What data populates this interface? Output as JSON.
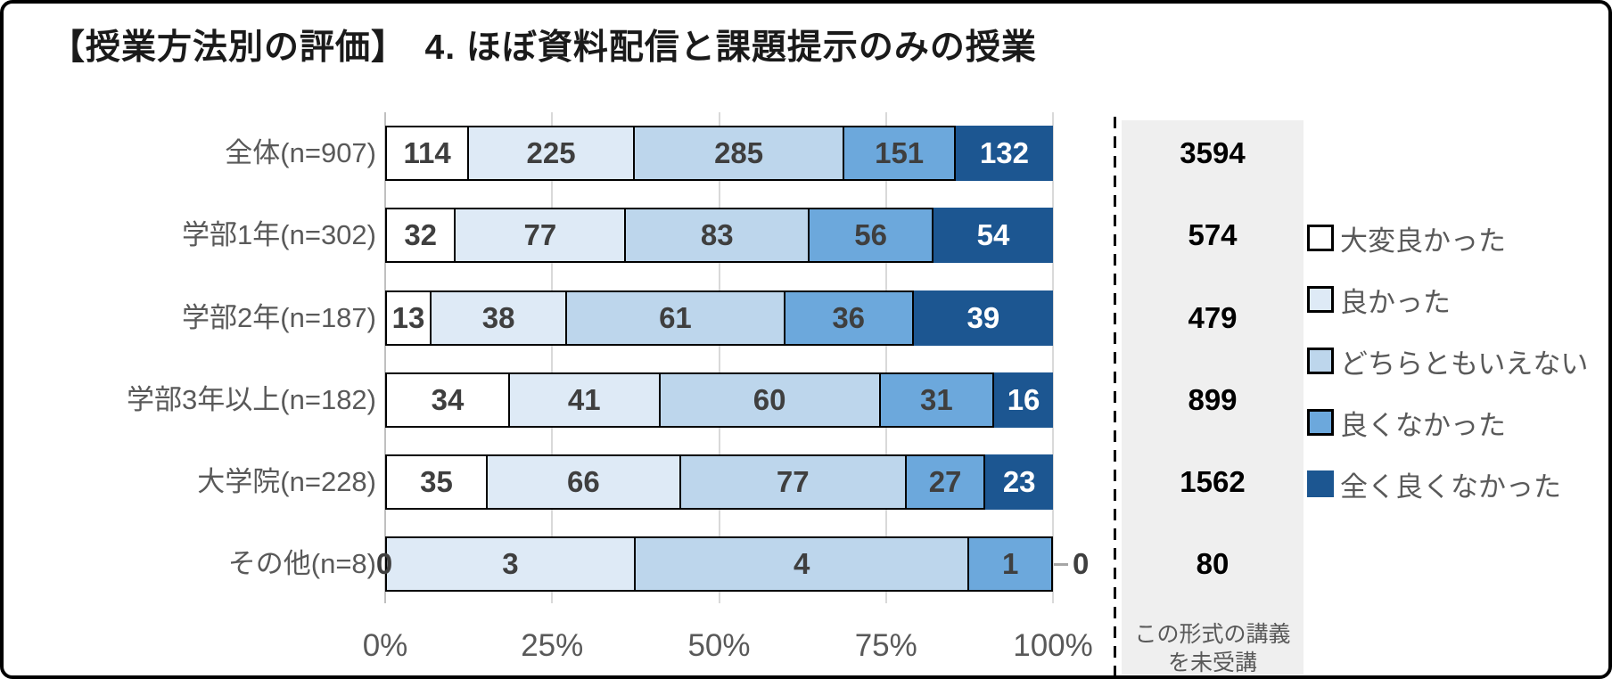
{
  "title": "【授業方法別の評価】　4. ほぼ資料配信と課題提示のみの授業",
  "legend": {
    "items": [
      {
        "label": "大変良かった",
        "color": "#ffffff",
        "bordered": true
      },
      {
        "label": "良かった",
        "color": "#deeaf6",
        "bordered": true
      },
      {
        "label": "どちらともいえない",
        "color": "#bdd6ec",
        "bordered": true
      },
      {
        "label": "良くなかった",
        "color": "#6ca8dc",
        "bordered": true
      },
      {
        "label": "全く良くなかった",
        "color": "#1c5691",
        "bordered": false
      }
    ]
  },
  "chart_data": {
    "type": "bar",
    "subtype": "horizontal-100pct-stacked",
    "title": "【授業方法別の評価】　4. ほぼ資料配信と課題提示のみの授業",
    "categories": [
      "全体(n=907)",
      "学部1年(n=302)",
      "学部2年(n=187)",
      "学部3年以上(n=182)",
      "大学院(n=228)",
      "その他(n=8)"
    ],
    "series": [
      {
        "name": "大変良かった",
        "values": [
          114,
          32,
          13,
          34,
          35,
          0
        ]
      },
      {
        "name": "良かった",
        "values": [
          225,
          77,
          38,
          41,
          66,
          3
        ]
      },
      {
        "name": "どちらともいえない",
        "values": [
          285,
          83,
          61,
          60,
          77,
          4
        ]
      },
      {
        "name": "良くなかった",
        "values": [
          151,
          56,
          36,
          31,
          27,
          1
        ]
      },
      {
        "name": "全く良くなかった",
        "values": [
          132,
          54,
          39,
          16,
          23,
          0
        ]
      }
    ],
    "row_totals": [
      907,
      302,
      187,
      182,
      228,
      8
    ],
    "not_taken_values": [
      3594,
      574,
      479,
      899,
      1562,
      80
    ],
    "not_taken_note_line1": "この形式の講義",
    "not_taken_note_line2": "を未受講",
    "x_ticks": [
      "0%",
      "25%",
      "50%",
      "75%",
      "100%"
    ],
    "x_range_pct": [
      0,
      100
    ],
    "grid": true,
    "legend_position": "right",
    "colors": {
      "segment_border": "#000000",
      "gridline": "#d9d9d9",
      "axis_line": "#c0c0c0",
      "panel_bg": "#efefef",
      "label_gray": "#595959",
      "value_dark": "#3f3f3f",
      "value_light": "#ffffff",
      "leader_gray": "#a6a6a6"
    }
  }
}
